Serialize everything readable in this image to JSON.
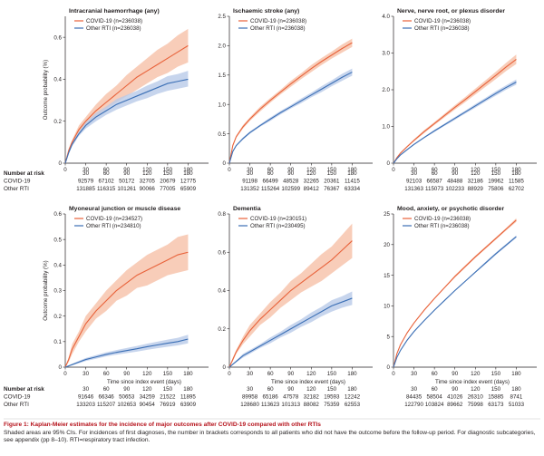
{
  "colors": {
    "covid": "#e8623a",
    "covid_band": "#f6c0a8",
    "other": "#3b6fb5",
    "other_band": "#b9cbe8",
    "axis": "#231f20",
    "caption_title": "#b5121b"
  },
  "axis_shared": {
    "ylabel": "Outcome probability (%)",
    "xlabel": "Time since index event (days)",
    "xticks": [
      0,
      30,
      60,
      90,
      120,
      150,
      180
    ]
  },
  "risk_table": {
    "header": "Number at risk",
    "days": [
      "30",
      "60",
      "90",
      "120",
      "150",
      "180"
    ],
    "row_labels": [
      "COVID-19",
      "Other RTI"
    ]
  },
  "chart_data": [
    {
      "type": "line",
      "title": "Intracranial haemorrhage (any)",
      "xlim": [
        0,
        210
      ],
      "ylim": [
        0,
        0.7
      ],
      "yticks": [
        "0",
        "0.2",
        "0.4",
        "0.6"
      ],
      "ytick_values": [
        0,
        0.2,
        0.4,
        0.6
      ],
      "x": [
        0,
        5,
        10,
        20,
        30,
        45,
        60,
        75,
        90,
        105,
        120,
        135,
        150,
        165,
        180
      ],
      "series": [
        {
          "name": "COVID-19 (n=236038)",
          "values": [
            0,
            0.06,
            0.1,
            0.16,
            0.2,
            0.25,
            0.29,
            0.33,
            0.37,
            0.41,
            0.44,
            0.47,
            0.5,
            0.53,
            0.56
          ],
          "ci_low": [
            0,
            0.05,
            0.09,
            0.14,
            0.18,
            0.22,
            0.26,
            0.29,
            0.32,
            0.35,
            0.38,
            0.41,
            0.43,
            0.46,
            0.48
          ],
          "ci_high": [
            0,
            0.07,
            0.11,
            0.18,
            0.22,
            0.28,
            0.33,
            0.37,
            0.42,
            0.46,
            0.5,
            0.54,
            0.57,
            0.61,
            0.64
          ]
        },
        {
          "name": "Other RTI (n=236038)",
          "values": [
            0,
            0.05,
            0.09,
            0.14,
            0.18,
            0.22,
            0.25,
            0.28,
            0.3,
            0.32,
            0.34,
            0.36,
            0.38,
            0.39,
            0.4
          ],
          "ci_low": [
            0,
            0.045,
            0.08,
            0.13,
            0.165,
            0.2,
            0.23,
            0.255,
            0.275,
            0.295,
            0.31,
            0.33,
            0.345,
            0.355,
            0.365
          ],
          "ci_high": [
            0,
            0.055,
            0.1,
            0.15,
            0.195,
            0.24,
            0.27,
            0.305,
            0.325,
            0.345,
            0.37,
            0.39,
            0.415,
            0.425,
            0.44
          ]
        }
      ],
      "risk_covid": [
        "92579",
        "67102",
        "50172",
        "32705",
        "20679",
        "12775"
      ],
      "risk_other": [
        "131885",
        "116315",
        "101261",
        "90066",
        "77005",
        "65909"
      ]
    },
    {
      "type": "line",
      "title": "Ischaemic stroke (any)",
      "xlim": [
        0,
        210
      ],
      "ylim": [
        0,
        2.5
      ],
      "yticks": [
        "0",
        "0.5",
        "1.0",
        "1.5",
        "2.0",
        "2.5"
      ],
      "ytick_values": [
        0,
        0.5,
        1.0,
        1.5,
        2.0,
        2.5
      ],
      "x": [
        0,
        5,
        10,
        20,
        30,
        45,
        60,
        75,
        90,
        105,
        120,
        135,
        150,
        165,
        180
      ],
      "series": [
        {
          "name": "COVID-19 (n=236038)",
          "values": [
            0,
            0.3,
            0.45,
            0.62,
            0.75,
            0.92,
            1.07,
            1.21,
            1.35,
            1.48,
            1.61,
            1.73,
            1.84,
            1.95,
            2.05
          ],
          "ci_low": [
            0,
            0.28,
            0.43,
            0.59,
            0.72,
            0.88,
            1.03,
            1.17,
            1.3,
            1.43,
            1.55,
            1.67,
            1.78,
            1.88,
            1.98
          ],
          "ci_high": [
            0,
            0.32,
            0.47,
            0.65,
            0.78,
            0.96,
            1.11,
            1.25,
            1.4,
            1.53,
            1.67,
            1.79,
            1.9,
            2.02,
            2.12
          ]
        },
        {
          "name": "Other RTI (n=236038)",
          "values": [
            0,
            0.2,
            0.3,
            0.42,
            0.52,
            0.64,
            0.75,
            0.86,
            0.96,
            1.06,
            1.16,
            1.26,
            1.36,
            1.46,
            1.55
          ],
          "ci_low": [
            0,
            0.19,
            0.29,
            0.4,
            0.5,
            0.62,
            0.72,
            0.83,
            0.93,
            1.02,
            1.12,
            1.21,
            1.31,
            1.4,
            1.49
          ],
          "ci_high": [
            0,
            0.21,
            0.31,
            0.44,
            0.54,
            0.66,
            0.78,
            0.89,
            0.99,
            1.1,
            1.2,
            1.31,
            1.41,
            1.52,
            1.61
          ]
        }
      ],
      "risk_covid": [
        "91198",
        "66499",
        "48528",
        "32265",
        "20361",
        "11415"
      ],
      "risk_other": [
        "131352",
        "115264",
        "102599",
        "89412",
        "76367",
        "63334"
      ]
    },
    {
      "type": "line",
      "title": "Nerve, nerve root, or plexus disorder",
      "xlim": [
        0,
        210
      ],
      "ylim": [
        0,
        4.0
      ],
      "yticks": [
        "0",
        "1.0",
        "2.0",
        "3.0",
        "4.0"
      ],
      "ytick_values": [
        0,
        1,
        2,
        3,
        4
      ],
      "x": [
        0,
        5,
        10,
        20,
        30,
        45,
        60,
        75,
        90,
        105,
        120,
        135,
        150,
        165,
        180
      ],
      "series": [
        {
          "name": "COVID-19 (n=236038)",
          "values": [
            0,
            0.15,
            0.27,
            0.45,
            0.62,
            0.86,
            1.08,
            1.3,
            1.52,
            1.73,
            1.95,
            2.17,
            2.39,
            2.62,
            2.83
          ],
          "ci_low": [
            0,
            0.14,
            0.25,
            0.43,
            0.59,
            0.82,
            1.04,
            1.25,
            1.46,
            1.66,
            1.87,
            2.08,
            2.29,
            2.51,
            2.7
          ],
          "ci_high": [
            0,
            0.16,
            0.29,
            0.47,
            0.65,
            0.9,
            1.12,
            1.35,
            1.58,
            1.8,
            2.03,
            2.26,
            2.49,
            2.73,
            2.96
          ]
        },
        {
          "name": "Other RTI (n=236038)",
          "values": [
            0,
            0.12,
            0.22,
            0.37,
            0.51,
            0.7,
            0.88,
            1.05,
            1.22,
            1.39,
            1.56,
            1.73,
            1.9,
            2.06,
            2.21
          ],
          "ci_low": [
            0,
            0.11,
            0.21,
            0.35,
            0.49,
            0.68,
            0.85,
            1.02,
            1.18,
            1.35,
            1.51,
            1.68,
            1.84,
            2.0,
            2.14
          ],
          "ci_high": [
            0,
            0.13,
            0.23,
            0.39,
            0.53,
            0.72,
            0.91,
            1.08,
            1.26,
            1.43,
            1.61,
            1.78,
            1.96,
            2.12,
            2.28
          ]
        }
      ],
      "risk_covid": [
        "92103",
        "66587",
        "48488",
        "32186",
        "19962",
        "11585"
      ],
      "risk_other": [
        "131363",
        "115073",
        "102233",
        "88929",
        "75806",
        "62702"
      ]
    },
    {
      "type": "line",
      "title": "Myoneural junction or muscle disease",
      "xlim": [
        0,
        210
      ],
      "ylim": [
        0,
        0.6
      ],
      "yticks": [
        "0",
        "0.1",
        "0.2",
        "0.3",
        "0.4",
        "0.5",
        "0.6"
      ],
      "ytick_values": [
        0,
        0.1,
        0.2,
        0.3,
        0.4,
        0.5,
        0.6
      ],
      "x": [
        0,
        5,
        10,
        20,
        30,
        45,
        60,
        75,
        90,
        105,
        120,
        135,
        150,
        165,
        180
      ],
      "series": [
        {
          "name": "COVID-19 (n=234527)",
          "values": [
            0,
            0.03,
            0.07,
            0.12,
            0.17,
            0.22,
            0.26,
            0.3,
            0.33,
            0.36,
            0.38,
            0.4,
            0.42,
            0.44,
            0.45
          ],
          "ci_low": [
            0,
            0.02,
            0.05,
            0.1,
            0.14,
            0.19,
            0.22,
            0.26,
            0.28,
            0.31,
            0.32,
            0.34,
            0.36,
            0.37,
            0.38
          ],
          "ci_high": [
            0,
            0.04,
            0.09,
            0.14,
            0.2,
            0.25,
            0.3,
            0.34,
            0.38,
            0.41,
            0.44,
            0.46,
            0.48,
            0.51,
            0.52
          ]
        },
        {
          "name": "Other RTI (n=234810)",
          "values": [
            0,
            0.005,
            0.01,
            0.02,
            0.03,
            0.04,
            0.05,
            0.058,
            0.065,
            0.072,
            0.08,
            0.087,
            0.094,
            0.1,
            0.11
          ],
          "ci_low": [
            0,
            0.003,
            0.007,
            0.015,
            0.024,
            0.033,
            0.042,
            0.049,
            0.055,
            0.061,
            0.068,
            0.074,
            0.08,
            0.085,
            0.093
          ],
          "ci_high": [
            0,
            0.007,
            0.013,
            0.025,
            0.036,
            0.047,
            0.058,
            0.067,
            0.075,
            0.083,
            0.092,
            0.1,
            0.108,
            0.115,
            0.127
          ]
        }
      ],
      "risk_covid": [
        "91646",
        "66346",
        "50653",
        "34259",
        "21522",
        "11895"
      ],
      "risk_other": [
        "133203",
        "115207",
        "102653",
        "90454",
        "76919",
        "63909"
      ]
    },
    {
      "type": "line",
      "title": "Dementia",
      "xlim": [
        0,
        210
      ],
      "ylim": [
        0,
        0.8
      ],
      "yticks": [
        "0",
        "0.2",
        "0.4",
        "0.6",
        "0.8"
      ],
      "ytick_values": [
        0,
        0.2,
        0.4,
        0.6,
        0.8
      ],
      "x": [
        0,
        5,
        10,
        20,
        30,
        45,
        60,
        75,
        90,
        105,
        120,
        135,
        150,
        165,
        180
      ],
      "series": [
        {
          "name": "COVID-19 (n=230151)",
          "values": [
            0,
            0.04,
            0.08,
            0.14,
            0.19,
            0.25,
            0.3,
            0.35,
            0.4,
            0.44,
            0.48,
            0.52,
            0.56,
            0.61,
            0.66
          ],
          "ci_low": [
            0,
            0.03,
            0.07,
            0.12,
            0.16,
            0.22,
            0.26,
            0.31,
            0.35,
            0.39,
            0.42,
            0.45,
            0.49,
            0.53,
            0.57
          ],
          "ci_high": [
            0,
            0.05,
            0.09,
            0.16,
            0.22,
            0.28,
            0.34,
            0.39,
            0.45,
            0.49,
            0.54,
            0.59,
            0.63,
            0.69,
            0.75
          ]
        },
        {
          "name": "Other RTI (n=230495)",
          "values": [
            0,
            0.015,
            0.03,
            0.06,
            0.08,
            0.11,
            0.14,
            0.17,
            0.2,
            0.23,
            0.26,
            0.29,
            0.32,
            0.34,
            0.36
          ],
          "ci_low": [
            0,
            0.012,
            0.025,
            0.05,
            0.07,
            0.1,
            0.125,
            0.155,
            0.18,
            0.21,
            0.235,
            0.265,
            0.29,
            0.31,
            0.325
          ],
          "ci_high": [
            0,
            0.018,
            0.035,
            0.07,
            0.09,
            0.12,
            0.155,
            0.185,
            0.22,
            0.25,
            0.285,
            0.315,
            0.35,
            0.37,
            0.395
          ]
        }
      ],
      "risk_covid": [
        "89958",
        "65186",
        "47578",
        "32182",
        "19593",
        "12242"
      ],
      "risk_other": [
        "128680",
        "113623",
        "101313",
        "88082",
        "75359",
        "62553"
      ]
    },
    {
      "type": "line",
      "title": "Mood, anxiety, or psychotic disorder",
      "xlim": [
        0,
        210
      ],
      "ylim": [
        0,
        25
      ],
      "yticks": [
        "0",
        "5",
        "10",
        "15",
        "20",
        "25"
      ],
      "ytick_values": [
        0,
        5,
        10,
        15,
        20,
        25
      ],
      "x": [
        0,
        5,
        10,
        20,
        30,
        45,
        60,
        75,
        90,
        105,
        120,
        135,
        150,
        165,
        180
      ],
      "series": [
        {
          "name": "COVID-19 (n=236038)",
          "values": [
            0,
            2.2,
            3.6,
            5.6,
            7.2,
            9.3,
            11.2,
            13.0,
            14.8,
            16.4,
            18.0,
            19.5,
            21.0,
            22.5,
            24.0
          ],
          "ci_low": [
            0,
            2.1,
            3.5,
            5.5,
            7.1,
            9.2,
            11.1,
            12.9,
            14.6,
            16.2,
            17.8,
            19.3,
            20.8,
            22.3,
            23.7
          ],
          "ci_high": [
            0,
            2.3,
            3.7,
            5.7,
            7.3,
            9.4,
            11.3,
            13.1,
            15.0,
            16.6,
            18.2,
            19.7,
            21.2,
            22.7,
            24.3
          ]
        },
        {
          "name": "Other RTI (n=236038)",
          "values": [
            0,
            1.6,
            2.7,
            4.4,
            5.8,
            7.6,
            9.3,
            10.9,
            12.5,
            14.0,
            15.5,
            17.0,
            18.5,
            19.9,
            21.3
          ],
          "ci_low": [
            0,
            1.55,
            2.6,
            4.3,
            5.7,
            7.5,
            9.2,
            10.8,
            12.4,
            13.9,
            15.4,
            16.8,
            18.3,
            19.7,
            21.1
          ],
          "ci_high": [
            0,
            1.65,
            2.8,
            4.5,
            5.9,
            7.7,
            9.4,
            11.0,
            12.6,
            14.1,
            15.6,
            17.2,
            18.7,
            20.1,
            21.5
          ]
        }
      ],
      "risk_covid": [
        "84435",
        "58504",
        "41026",
        "26310",
        "15885",
        "8741"
      ],
      "risk_other": [
        "122790",
        "103824",
        "89662",
        "75998",
        "63173",
        "51033"
      ]
    }
  ],
  "caption": {
    "title": "Figure 1: Kaplan-Meier estimates for the incidence of major outcomes after COVID-19 compared with other RTIs",
    "text": "Shaded areas are 95% CIs. For incidences of first diagnoses, the number in brackets corresponds to all patients who did not have the outcome before the follow-up period. For diagnostic subcategories, see appendix (pp 8–10). RTI=respiratory tract infection."
  }
}
